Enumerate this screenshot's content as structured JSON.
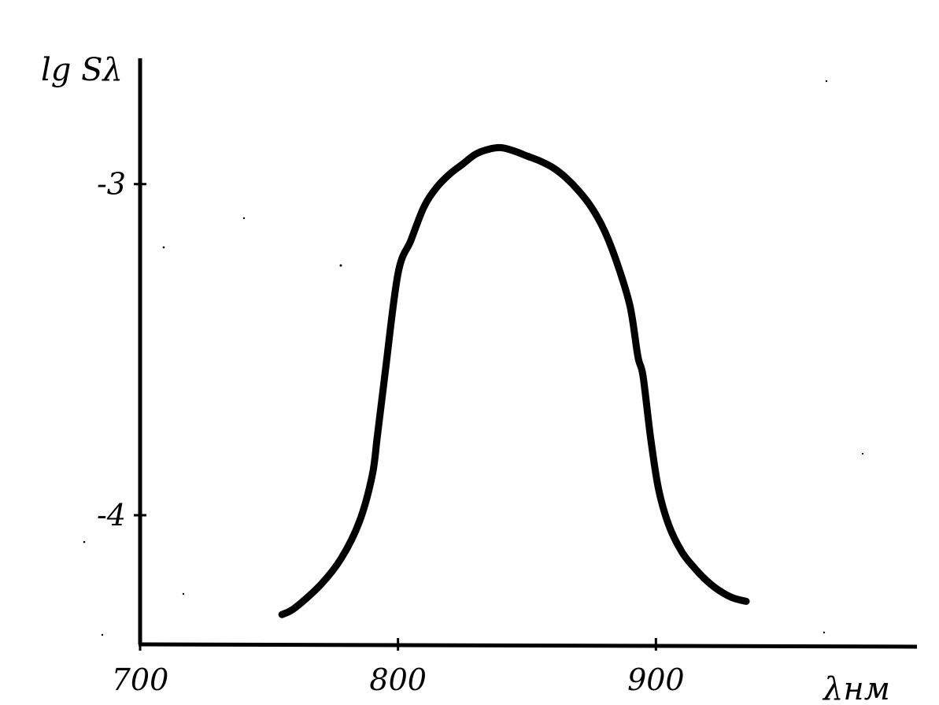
{
  "chart_data": {
    "type": "line",
    "xlabel": "λнм",
    "ylabel": "lg Sλ",
    "xlim": [
      700,
      1000
    ],
    "ylim": [
      -4.39,
      -2.62
    ],
    "x_ticks": [
      {
        "value": 700,
        "label": "700"
      },
      {
        "value": 800,
        "label": "800"
      },
      {
        "value": 900,
        "label": "900"
      }
    ],
    "y_ticks": [
      {
        "value": -3,
        "label": "-3"
      },
      {
        "value": -4,
        "label": "-4"
      }
    ],
    "grid": false,
    "series": [
      {
        "x": [
          755,
          760,
          770,
          778,
          785,
          790,
          792,
          795,
          800,
          805,
          810,
          815,
          820,
          825,
          830,
          835,
          840,
          845,
          850,
          855,
          860,
          865,
          870,
          875,
          880,
          885,
          890,
          893,
          895,
          898,
          901,
          905,
          910,
          915,
          920,
          925,
          930,
          935
        ],
        "y": [
          -4.3,
          -4.28,
          -4.21,
          -4.13,
          -4.02,
          -3.88,
          -3.76,
          -3.57,
          -3.27,
          -3.17,
          -3.07,
          -3.01,
          -2.97,
          -2.94,
          -2.91,
          -2.895,
          -2.89,
          -2.9,
          -2.915,
          -2.93,
          -2.95,
          -2.98,
          -3.02,
          -3.07,
          -3.14,
          -3.24,
          -3.37,
          -3.52,
          -3.58,
          -3.77,
          -3.92,
          -4.03,
          -4.11,
          -4.16,
          -4.2,
          -4.23,
          -4.25,
          -4.26
        ],
        "color": "#000000"
      }
    ]
  }
}
